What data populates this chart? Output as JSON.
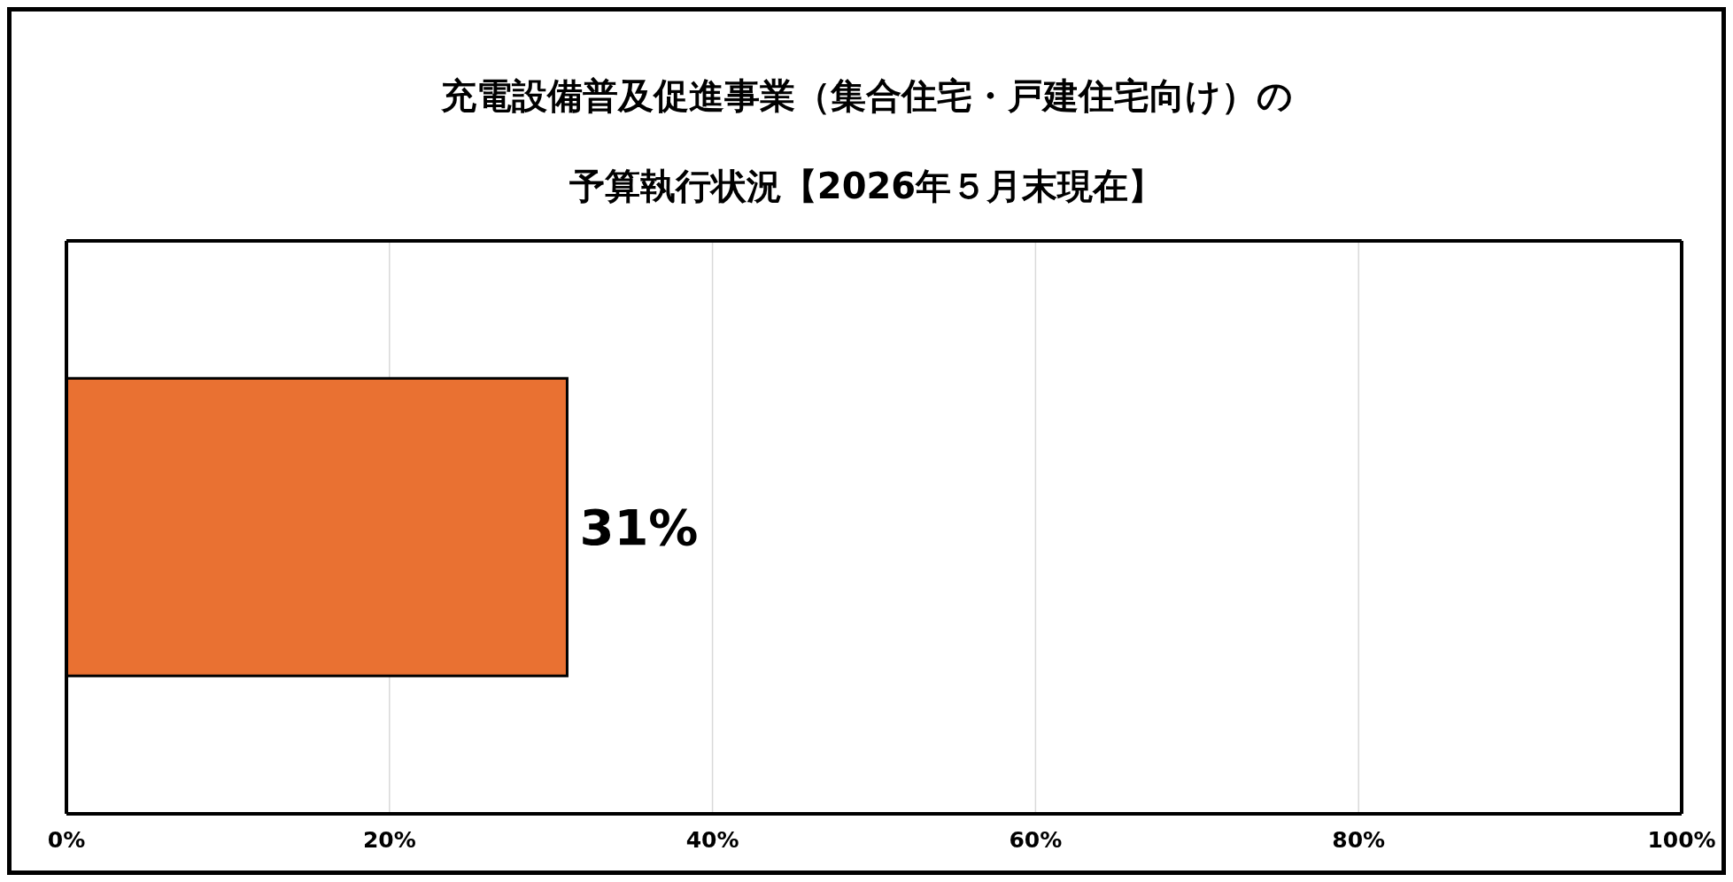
{
  "chart_data": {
    "type": "bar",
    "orientation": "horizontal",
    "title": "充電設備普及促進事業（集合住宅・戸建住宅向け）の予算執行状況【2026年５月末現在】",
    "categories": [
      null
    ],
    "values": [
      31
    ],
    "value_labels": [
      "31%"
    ],
    "color": "#e97132",
    "xlim": [
      0,
      100
    ],
    "xticks": [
      {
        "value": 0,
        "label": "0%"
      },
      {
        "value": 20,
        "label": "20%"
      },
      {
        "value": 40,
        "label": "40%"
      },
      {
        "value": 60,
        "label": "60%"
      },
      {
        "value": 80,
        "label": "80%"
      },
      {
        "value": 100,
        "label": "100%"
      }
    ],
    "grid": "x"
  }
}
